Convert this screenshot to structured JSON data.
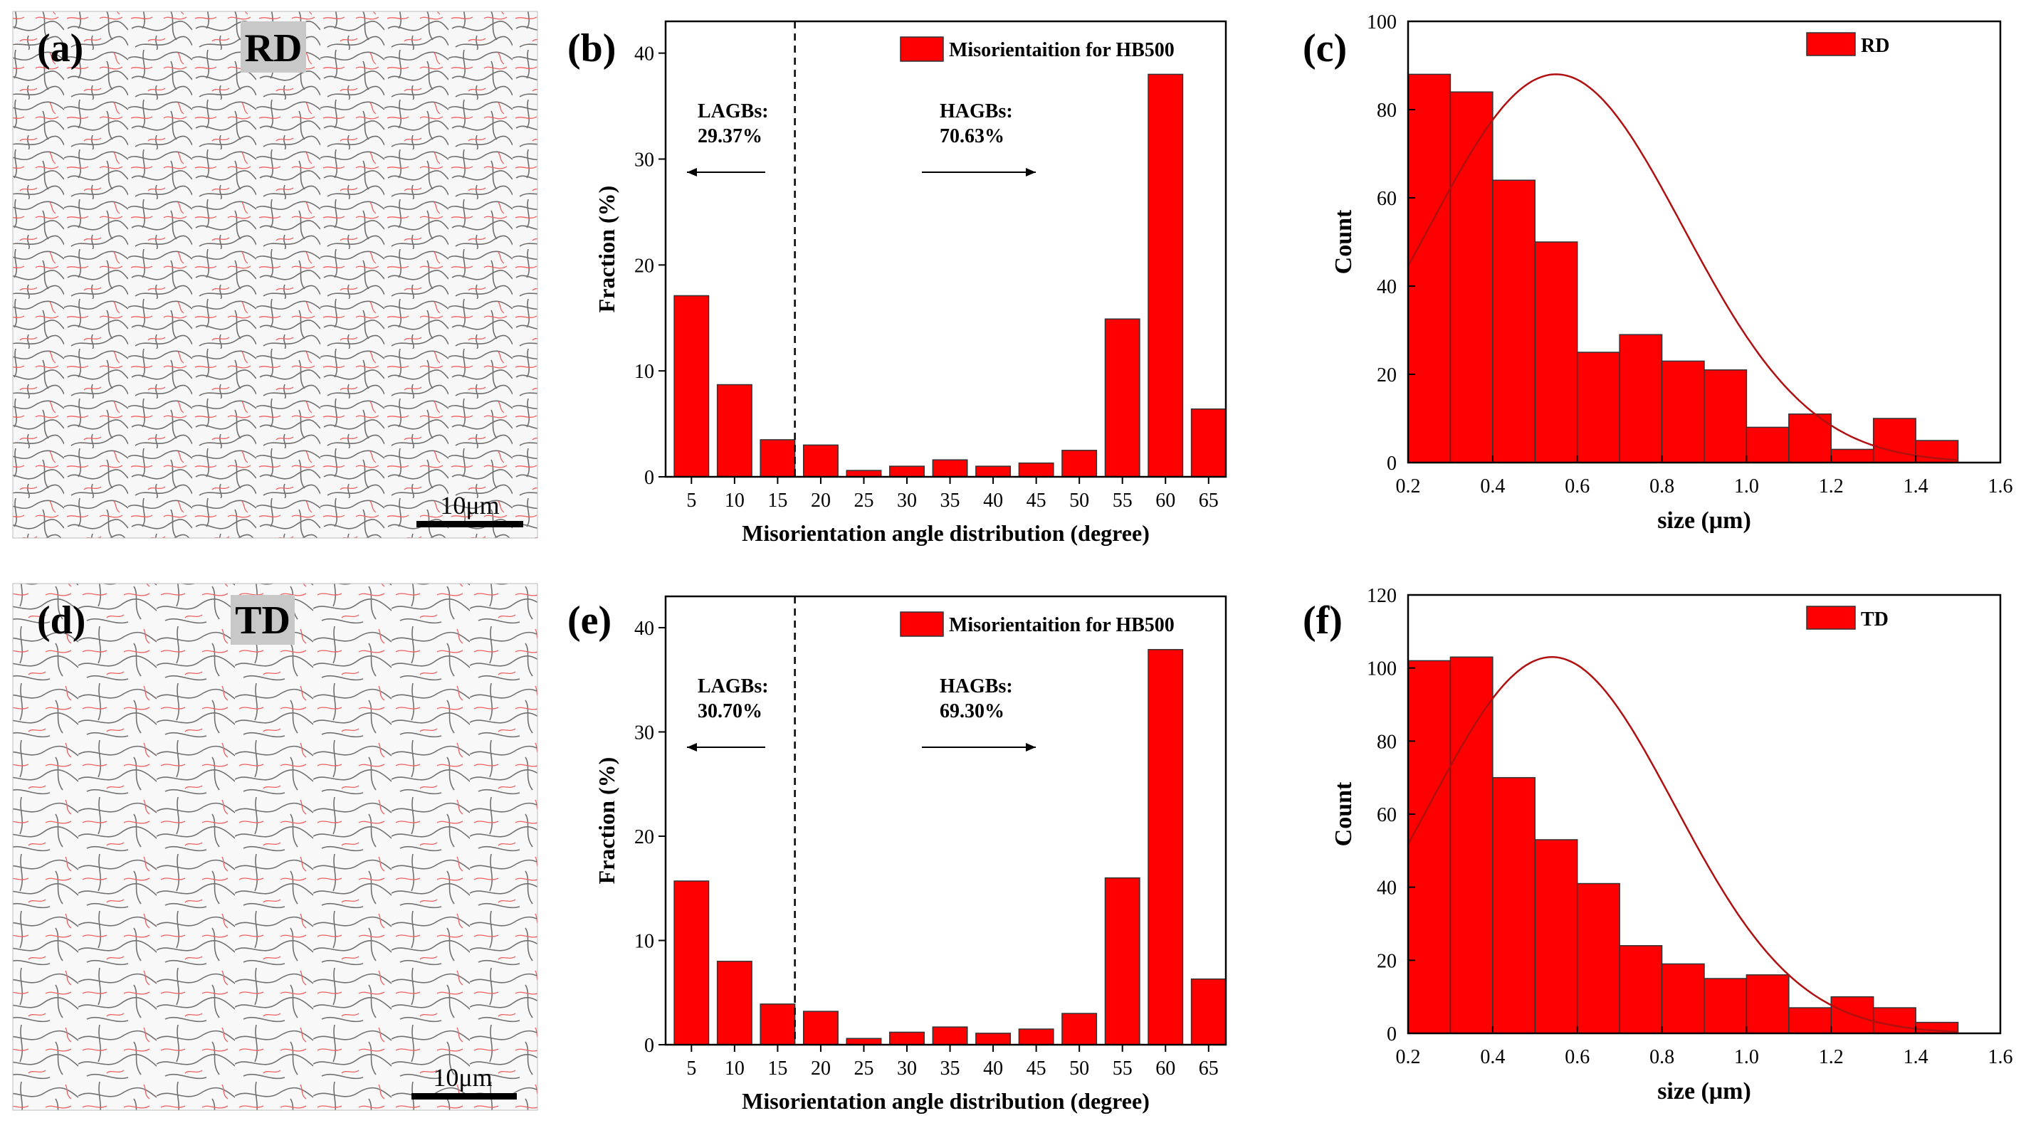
{
  "figure": {
    "panel_labels": [
      "(a)",
      "(b)",
      "(c)",
      "(d)",
      "(e)",
      "(f)"
    ],
    "micrographs": [
      {
        "direction_label": "RD",
        "scale_bar": "10μm"
      },
      {
        "direction_label": "TD",
        "scale_bar": "10μm"
      }
    ]
  },
  "chart_data": [
    {
      "panel": "(b)",
      "type": "bar",
      "title": "",
      "legend": "Misorientaition for HB500",
      "xlabel": "Misorientation angle distribution (degree)",
      "ylabel": "Fraction (%)",
      "categories": [
        "5",
        "10",
        "15",
        "20",
        "25",
        "30",
        "35",
        "40",
        "45",
        "50",
        "55",
        "60",
        "65"
      ],
      "values": [
        17.1,
        8.7,
        3.5,
        3.0,
        0.6,
        1.0,
        1.6,
        1.0,
        1.3,
        2.5,
        14.9,
        38.0,
        6.4
      ],
      "ylim": [
        0,
        43
      ],
      "yticks": [
        0,
        10,
        20,
        30,
        40
      ],
      "divider_x": 17,
      "annotations": {
        "left_name": "LAGBs:",
        "left_value": "29.37%",
        "right_name": "HAGBs:",
        "right_value": "70.63%"
      },
      "bar_color": "#ff0000"
    },
    {
      "panel": "(c)",
      "type": "bar",
      "title": "",
      "legend": "RD",
      "xlabel": "size (μm)",
      "ylabel": "Count",
      "bin_edges": [
        0.2,
        0.3,
        0.4,
        0.5,
        0.6,
        0.7,
        0.8,
        0.9,
        1.0,
        1.1,
        1.2,
        1.3,
        1.4,
        1.5
      ],
      "values": [
        88,
        84,
        64,
        50,
        25,
        29,
        23,
        21,
        8,
        11,
        3,
        10,
        5
      ],
      "xlim": [
        0.2,
        1.6
      ],
      "ylim": [
        0,
        100
      ],
      "xticks": [
        "0.2",
        "0.4",
        "0.6",
        "0.8",
        "1.0",
        "1.2",
        "1.4",
        "1.6"
      ],
      "yticks": [
        0,
        20,
        40,
        60,
        80,
        100
      ],
      "fit": {
        "type": "gaussian",
        "peak": 88,
        "mean": 0.55,
        "sigma": 0.3
      },
      "bar_color": "#ff0000",
      "fit_color": "#b01010"
    },
    {
      "panel": "(e)",
      "type": "bar",
      "title": "",
      "legend": "Misorientaition for HB500",
      "xlabel": "Misorientation angle distribution (degree)",
      "ylabel": "Fraction (%)",
      "categories": [
        "5",
        "10",
        "15",
        "20",
        "25",
        "30",
        "35",
        "40",
        "45",
        "50",
        "55",
        "60",
        "65"
      ],
      "values": [
        15.7,
        8.0,
        3.9,
        3.2,
        0.6,
        1.2,
        1.7,
        1.1,
        1.5,
        3.0,
        16.0,
        37.9,
        6.3
      ],
      "ylim": [
        0,
        43
      ],
      "yticks": [
        0,
        10,
        20,
        30,
        40
      ],
      "divider_x": 17,
      "annotations": {
        "left_name": "LAGBs:",
        "left_value": "30.70%",
        "right_name": "HAGBs:",
        "right_value": "69.30%"
      },
      "bar_color": "#ff0000"
    },
    {
      "panel": "(f)",
      "type": "bar",
      "title": "",
      "legend": "TD",
      "xlabel": "size (μm)",
      "ylabel": "Count",
      "bin_edges": [
        0.2,
        0.3,
        0.4,
        0.5,
        0.6,
        0.7,
        0.8,
        0.9,
        1.0,
        1.1,
        1.2,
        1.3,
        1.4,
        1.5
      ],
      "values": [
        102,
        103,
        70,
        53,
        41,
        24,
        19,
        15,
        16,
        7,
        10,
        7,
        3
      ],
      "xlim": [
        0.2,
        1.6
      ],
      "ylim": [
        0,
        120
      ],
      "xticks": [
        "0.2",
        "0.4",
        "0.6",
        "0.8",
        "1.0",
        "1.2",
        "1.4",
        "1.6"
      ],
      "yticks": [
        0,
        20,
        40,
        60,
        80,
        100,
        120
      ],
      "fit": {
        "type": "gaussian",
        "peak": 103,
        "mean": 0.54,
        "sigma": 0.29
      },
      "bar_color": "#ff0000",
      "fit_color": "#b01010"
    }
  ]
}
